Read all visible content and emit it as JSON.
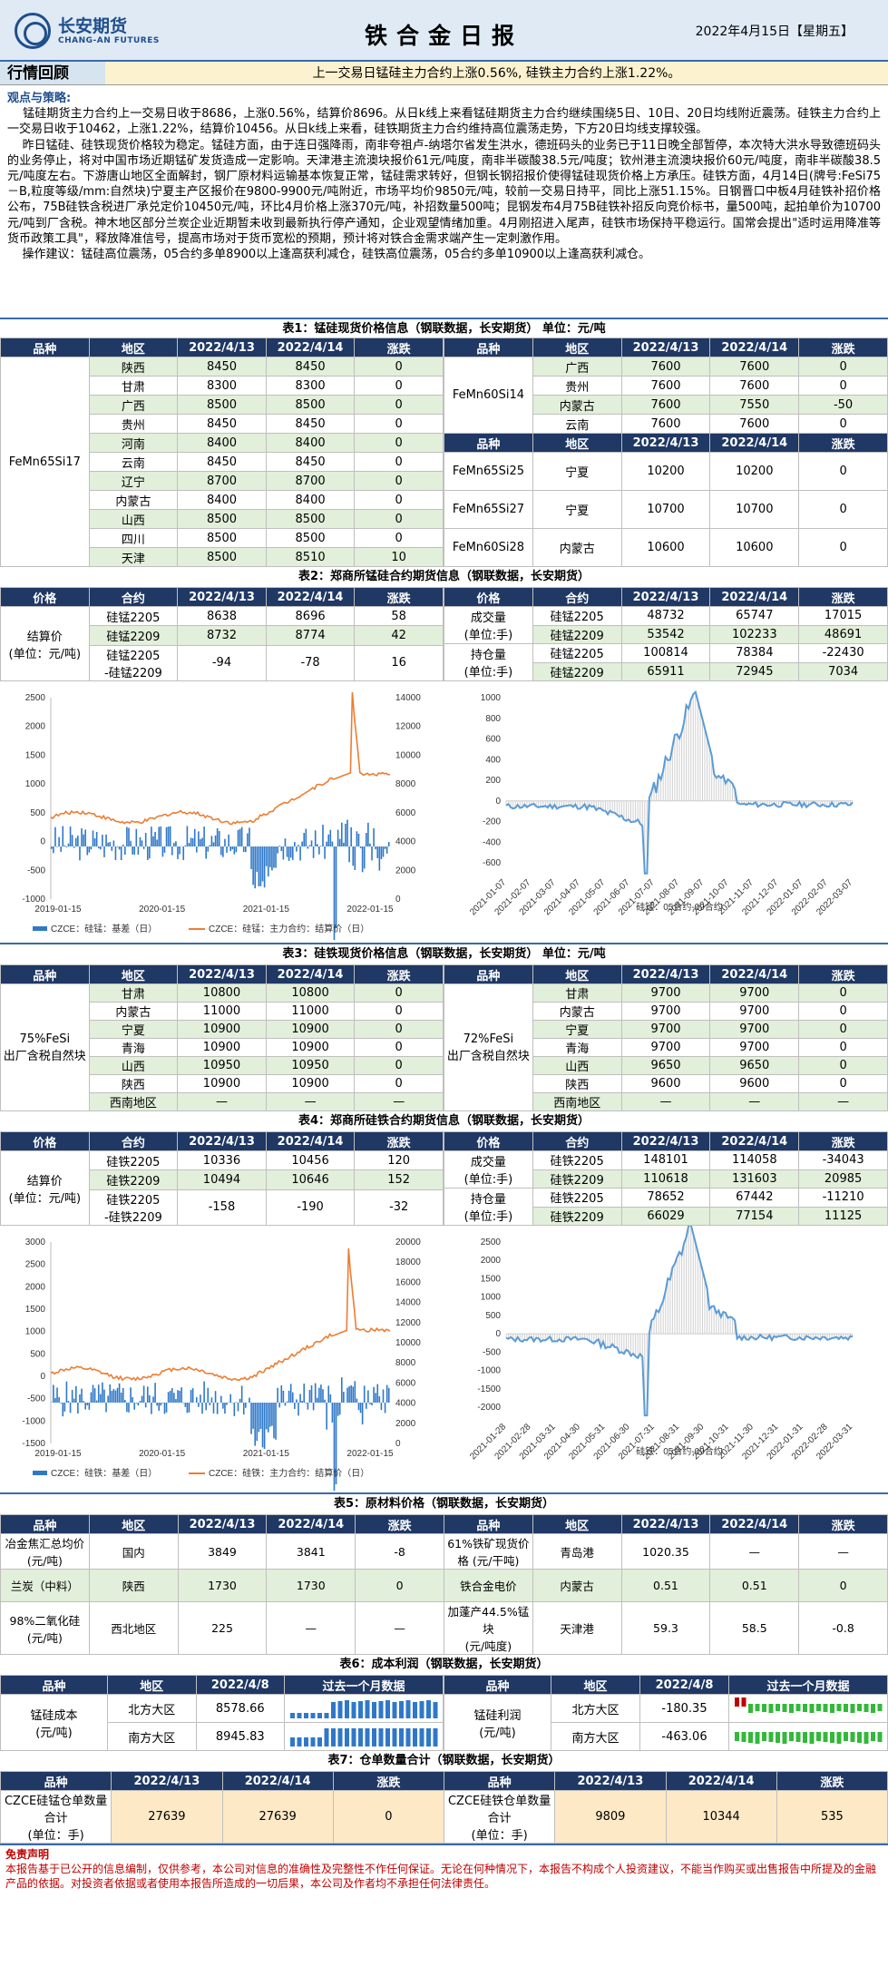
{
  "header": {
    "logo_cn": "长安期货",
    "logo_en": "CHANG-AN FUTURES",
    "title": "铁合金日报",
    "date": "2022年4月15日【星期五】"
  },
  "section": {
    "title": "行情回顾",
    "summary": "上一交易日锰硅主力合约上涨0.56%, 硅铁主力合约上涨1.22%。"
  },
  "view": {
    "heading": "观点与策略:",
    "body": "    锰硅期货主力合约上一交易日收于8686，上涨0.56%，结算价8696。从日k线上来看锰硅期货主力合约继续围绕5日、10日、20日均线附近震荡。硅铁主力合约上一交易日收于10462，上涨1.22%，结算价10456。从日k线上来看，硅铁期货主力合约维持高位震荡走势，下方20日均线支撑较强。\n    昨日锰硅、硅铁现货价格较为稳定。锰硅方面，由于连日强降雨，南非夸祖卢-纳塔尔省发生洪水，德班码头的业务已于11日晚全部暂停，本次特大洪水导致德班码头的业务停止，将对中国市场近期锰矿发货造成一定影响。天津港主流澳块报价61元/吨度，南非半碳酸38.5元/吨度；钦州港主流澳块报价60元/吨度，南非半碳酸38.5元/吨度左右。下游唐山地区全面解封，钢厂原材料运输基本恢复正常，锰硅需求转好，但钢长钢招报价使得锰硅现货价格上方承压。硅铁方面，4月14日(牌号:FeSi75－B,粒度等级/mm:自然块)宁夏主产区报价在9800-9900元/吨附近，市场平均价9850元/吨，较前一交易日持平，同比上涨51.15%。日钢晋口中板4月硅铁补招价格公布，75B硅铁含税进厂承兑定价10450元/吨，环比4月价格上涨370元/吨，补招数量500吨；昆钢发布4月75B硅铁补招反向竞价标书，量500吨，起拍单价为10700元/吨到厂含税。神木地区部分兰炭企业近期暂未收到最新执行停产通知，企业观望情绪加重。4月刚招进入尾声，硅铁市场保持平稳运行。国常会提出\"适时运用降准等货币政策工具\"，释放降准信号，提高市场对于货币宽松的预期，预计将对铁合金需求端产生一定刺激作用。\n    操作建议：锰硅高位震荡，05合约多单8900以上逢高获利减仓，硅铁高位震荡，05合约多单10900以上逢高获利减仓。"
  },
  "t1": {
    "caption": "表1：锰硅现货价格信息（钢联数据，长安期货）  单位：元/吨",
    "head": [
      "品种",
      "地区",
      "2022/4/13",
      "2022/4/14",
      "涨跌"
    ],
    "left_name": "FeMn65Si17",
    "left": [
      [
        "陕西",
        "8450",
        "8450",
        "0"
      ],
      [
        "甘肃",
        "8300",
        "8300",
        "0"
      ],
      [
        "广西",
        "8500",
        "8500",
        "0"
      ],
      [
        "贵州",
        "8450",
        "8450",
        "0"
      ],
      [
        "河南",
        "8400",
        "8400",
        "0"
      ],
      [
        "云南",
        "8450",
        "8450",
        "0"
      ],
      [
        "辽宁",
        "8700",
        "8700",
        "0"
      ],
      [
        "内蒙古",
        "8400",
        "8400",
        "0"
      ],
      [
        "山西",
        "8500",
        "8500",
        "0"
      ],
      [
        "四川",
        "8500",
        "8500",
        "0"
      ],
      [
        "天津",
        "8500",
        "8510",
        "10"
      ]
    ],
    "r1_name": "FeMn60Si14",
    "r1": [
      [
        "广西",
        "7600",
        "7600",
        "0"
      ],
      [
        "贵州",
        "7600",
        "7600",
        "0"
      ],
      [
        "内蒙古",
        "7600",
        "7550",
        "-50"
      ],
      [
        "云南",
        "7600",
        "7600",
        "0"
      ]
    ],
    "r2": [
      [
        "FeMn65Si25",
        "宁夏",
        "10200",
        "10200",
        "0"
      ],
      [
        "FeMn65Si27",
        "宁夏",
        "10700",
        "10700",
        "0"
      ],
      [
        "FeMn60Si28",
        "内蒙古",
        "10600",
        "10600",
        "0"
      ]
    ]
  },
  "t2": {
    "caption": "表2：郑商所锰硅合约期货信息（钢联数据，长安期货）",
    "head": [
      "价格",
      "合约",
      "2022/4/13",
      "2022/4/14",
      "涨跌"
    ],
    "settle_label": "结算价\n(单位：元/吨)",
    "rows": [
      [
        "硅锰2205",
        "8638",
        "8696",
        "58"
      ],
      [
        "硅锰2209",
        "8732",
        "8774",
        "42"
      ],
      [
        "硅锰2205\n-硅锰2209",
        "-94",
        "-78",
        "16"
      ]
    ],
    "vol_label": "成交量\n(单位:手)",
    "oi_label": "持仓量\n(单位:手)",
    "right": [
      [
        "硅锰2205",
        "48732",
        "65747",
        "17015"
      ],
      [
        "硅锰2209",
        "53542",
        "102233",
        "48691"
      ],
      [
        "硅锰2205",
        "100814",
        "78384",
        "-22430"
      ],
      [
        "硅锰2209",
        "65911",
        "72945",
        "7034"
      ]
    ]
  },
  "c1": {
    "left_yticks": [
      "2500",
      "2000",
      "1500",
      "1000",
      "500",
      "0",
      "-500",
      "-1000"
    ],
    "right_yticks": [
      "14000",
      "12000",
      "10000",
      "8000",
      "6000",
      "4000",
      "2000",
      "0"
    ],
    "xticks": [
      "2019-01-15",
      "2020-01-15",
      "2021-01-15",
      "2022-01-15"
    ],
    "leg1": "CZCE：硅锰：基差（日）",
    "leg2": "CZCE：硅锰：主力合约：结算价（日）",
    "r_yticks": [
      "1000",
      "800",
      "600",
      "400",
      "200",
      "0",
      "-200",
      "-400",
      "-600"
    ],
    "r_xticks": [
      "2021-01-07",
      "2021-02-07",
      "2021-03-07",
      "2021-04-07",
      "2021-05-07",
      "2021-06-07",
      "2021-07-07",
      "2021-08-07",
      "2021-09-07",
      "2021-10-07",
      "2021-11-07",
      "2021-12-07",
      "2022-01-07",
      "2022-02-07",
      "2022-03-07"
    ],
    "r_leg": "硅锰：05合约-09合约"
  },
  "t3": {
    "caption": "表3：硅铁现货价格信息（钢联数据，长安期货）  单位：元/吨",
    "head": [
      "品种",
      "地区",
      "2022/4/13",
      "2022/4/14",
      "涨跌"
    ],
    "left_name": "75%FeSi\n出厂含税自然块",
    "right_name": "72%FeSi\n出厂含税自然块",
    "left": [
      [
        "甘肃",
        "10800",
        "10800",
        "0"
      ],
      [
        "内蒙古",
        "11000",
        "11000",
        "0"
      ],
      [
        "宁夏",
        "10900",
        "10900",
        "0"
      ],
      [
        "青海",
        "10900",
        "10900",
        "0"
      ],
      [
        "山西",
        "10950",
        "10950",
        "0"
      ],
      [
        "陕西",
        "10900",
        "10900",
        "0"
      ],
      [
        "西南地区",
        "—",
        "—",
        "—"
      ]
    ],
    "right": [
      [
        "甘肃",
        "9700",
        "9700",
        "0"
      ],
      [
        "内蒙古",
        "9700",
        "9700",
        "0"
      ],
      [
        "宁夏",
        "9700",
        "9700",
        "0"
      ],
      [
        "青海",
        "9700",
        "9700",
        "0"
      ],
      [
        "山西",
        "9650",
        "9650",
        "0"
      ],
      [
        "陕西",
        "9600",
        "9600",
        "0"
      ],
      [
        "西南地区",
        "—",
        "—",
        "—"
      ]
    ]
  },
  "t4": {
    "caption": "表4：郑商所硅铁合约期货信息（钢联数据，长安期货）",
    "head": [
      "价格",
      "合约",
      "2022/4/13",
      "2022/4/14",
      "涨跌"
    ],
    "settle_label": "结算价\n(单位：元/吨)",
    "rows": [
      [
        "硅铁2205",
        "10336",
        "10456",
        "120"
      ],
      [
        "硅铁2209",
        "10494",
        "10646",
        "152"
      ],
      [
        "硅铁2205\n-硅铁2209",
        "-158",
        "-190",
        "-32"
      ]
    ],
    "vol_label": "成交量\n(单位:手)",
    "oi_label": "持仓量\n(单位:手)",
    "right": [
      [
        "硅铁2205",
        "148101",
        "114058",
        "-34043"
      ],
      [
        "硅铁2209",
        "110618",
        "131603",
        "20985"
      ],
      [
        "硅铁2205",
        "78652",
        "67442",
        "-11210"
      ],
      [
        "硅铁2209",
        "66029",
        "77154",
        "11125"
      ]
    ]
  },
  "c2": {
    "left_yticks": [
      "3000",
      "2500",
      "2000",
      "1500",
      "1000",
      "500",
      "0",
      "-500",
      "-1000",
      "-1500"
    ],
    "right_yticks": [
      "20000",
      "18000",
      "16000",
      "14000",
      "12000",
      "10000",
      "8000",
      "6000",
      "4000",
      "2000",
      "0"
    ],
    "xticks": [
      "2019-01-15",
      "2020-01-15",
      "2021-01-15",
      "2022-01-15"
    ],
    "leg1": "CZCE：硅铁：基差（日）",
    "leg2": "CZCE：硅铁：主力合约：结算价（日）",
    "r_yticks": [
      "2500",
      "2000",
      "1500",
      "1000",
      "500",
      "0",
      "-500",
      "-1000",
      "-1500",
      "-2000"
    ],
    "r_xticks": [
      "2021-01-28",
      "2021-02-28",
      "2021-03-31",
      "2021-04-30",
      "2021-05-31",
      "2021-06-30",
      "2021-07-31",
      "2021-08-31",
      "2021-09-30",
      "2021-10-31",
      "2021-11-30",
      "2021-12-31",
      "2022-01-31",
      "2022-02-28",
      "2022-03-31"
    ],
    "r_leg": "硅铁：05合约-09合约"
  },
  "t5": {
    "caption": "表5：原材料价格（钢联数据，长安期货）",
    "head": [
      "品种",
      "地区",
      "2022/4/13",
      "2022/4/14",
      "涨跌"
    ],
    "rows": [
      [
        "冶金焦汇总均价\n(元/吨)",
        "国内",
        "3849",
        "3841",
        "-8",
        "61%铁矿现货价格 (元/干吨)",
        "青岛港",
        "1020.35",
        "—",
        "—"
      ],
      [
        "兰炭（中料）",
        "陕西",
        "1730",
        "1730",
        "0",
        "铁合金电价",
        "内蒙古",
        "0.51",
        "0.51",
        "0"
      ],
      [
        "98%二氧化硅\n(元/吨)",
        "西北地区",
        "225",
        "—",
        "—",
        "加蓬产44.5%锰块\n(元/吨度)",
        "天津港",
        "59.3",
        "58.5",
        "-0.8"
      ]
    ]
  },
  "t6": {
    "caption": "表6：成本利润（钢联数据，长安期货）",
    "head": [
      "品种",
      "地区",
      "2022/4/8",
      "过去一个月数据"
    ],
    "rows": [
      [
        "北方大区",
        "8578.66",
        "南方大区",
        "8945.83"
      ],
      [
        "北方大区",
        "-180.35",
        "南方大区",
        "-463.06"
      ]
    ],
    "cost_label": "锰硅成本\n(元/吨)",
    "profit_label": "锰硅利润\n(元/吨)"
  },
  "t7": {
    "caption": "表7：仓单数量合计（钢联数据，长安期货）",
    "head": [
      "品种",
      "2022/4/13",
      "2022/4/14",
      "涨跌"
    ],
    "rows": [
      [
        "CZCE硅锰仓单数量合计\n(单位：手)",
        "27639",
        "27639",
        "0",
        "CZCE硅铁仓单数量合计\n(单位：手)",
        "9809",
        "10344",
        "535"
      ]
    ]
  },
  "disclaimer": {
    "title": "免责声明",
    "body": "本报告基于已公开的信息编制，仅供参考，本公司对信息的准确性及完整性不作任何保证。无论在何种情况下，本报告不构成个人投资建议，不能当作购买或出售报告中所提及的金融产品的依据。对投资者依据或者使用本报告所造成的一切后果，本公司及作者均不承担任何法律责任。"
  }
}
